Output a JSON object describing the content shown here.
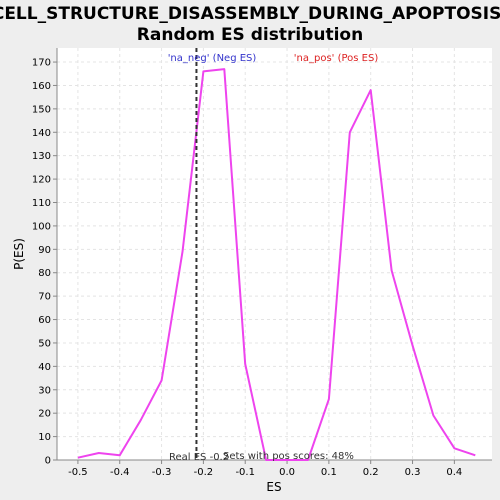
{
  "chart_data": {
    "type": "line",
    "title_line1": "CELL_STRUCTURE_DISASSEMBLY_DURING_APOPTOSIS:",
    "title_line2": "Random ES distribution",
    "xlabel": "ES",
    "ylabel": "P(ES)",
    "xlim": [
      -0.55,
      0.49
    ],
    "ylim": [
      0,
      176
    ],
    "x_ticks": [
      -0.5,
      -0.4,
      -0.3,
      -0.2,
      -0.1,
      0.0,
      0.1,
      0.2,
      0.3,
      0.4
    ],
    "x_tick_labels": [
      "-0.5",
      "-0.4",
      "-0.3",
      "-0.2",
      "-0.1",
      "0.0",
      "0.1",
      "0.2",
      "0.3",
      "0.4"
    ],
    "y_ticks": [
      0,
      10,
      20,
      30,
      40,
      50,
      60,
      70,
      80,
      90,
      100,
      110,
      120,
      130,
      140,
      150,
      160,
      170
    ],
    "grid": true,
    "series": [
      {
        "color": "#ee44ee",
        "x": [
          -0.5,
          -0.45,
          -0.4,
          -0.35,
          -0.3,
          -0.25,
          -0.2,
          -0.15,
          -0.1,
          -0.05,
          0.0,
          0.05,
          0.1,
          0.15,
          0.2,
          0.25,
          0.3,
          0.35,
          0.4,
          0.45
        ],
        "y": [
          1,
          3,
          2,
          17,
          34,
          89,
          166,
          167,
          41,
          0,
          0,
          0,
          26,
          140,
          158,
          81,
          49,
          19,
          5,
          2
        ]
      }
    ],
    "real_es": -0.2166,
    "annotations": {
      "neg_label": "'na_neg' (Neg ES)",
      "pos_label": "'na_pos' (Pos ES)",
      "real_es_label": "Real ES -0.2",
      "pos_scores_label": "Sets with pos scores: 48%",
      "neg_color": "#3333cc",
      "pos_color": "#dd2222"
    }
  }
}
